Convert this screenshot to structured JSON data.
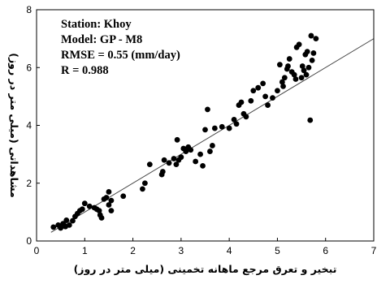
{
  "chart_data": {
    "type": "scatter",
    "title": "",
    "xlabel": "تبخیر و تعرق مرجع ماهانه تخمینی (میلی متر در روز)",
    "ylabel": "مشاهداتی (میلی متر در روز)",
    "xlim": [
      0,
      7
    ],
    "ylim": [
      0,
      8
    ],
    "xticks": [
      "0",
      "1",
      "2",
      "3",
      "4",
      "5",
      "6",
      "7"
    ],
    "yticks": [
      "0",
      "2",
      "4",
      "6",
      "8"
    ],
    "grid": false,
    "annotations": [
      "Station: Khoy",
      "Model: GP - M8",
      "RMSE = 0.55 (mm/day)",
      "R = 0.988"
    ],
    "reference_line": {
      "type": "1:1",
      "x": [
        0.3,
        7.0
      ],
      "y": [
        0.3,
        7.0
      ]
    },
    "points": [
      [
        0.35,
        0.48
      ],
      [
        0.45,
        0.55
      ],
      [
        0.5,
        0.45
      ],
      [
        0.55,
        0.6
      ],
      [
        0.6,
        0.5
      ],
      [
        0.62,
        0.72
      ],
      [
        0.68,
        0.55
      ],
      [
        0.75,
        0.7
      ],
      [
        0.8,
        0.85
      ],
      [
        0.85,
        0.95
      ],
      [
        0.9,
        1.05
      ],
      [
        0.95,
        1.1
      ],
      [
        1.0,
        1.3
      ],
      [
        1.1,
        1.2
      ],
      [
        1.2,
        1.15
      ],
      [
        1.25,
        1.1
      ],
      [
        1.3,
        1.05
      ],
      [
        1.32,
        0.9
      ],
      [
        1.35,
        0.8
      ],
      [
        1.4,
        1.45
      ],
      [
        1.45,
        1.5
      ],
      [
        1.5,
        1.25
      ],
      [
        1.55,
        1.4
      ],
      [
        1.55,
        1.05
      ],
      [
        1.5,
        1.7
      ],
      [
        1.8,
        1.55
      ],
      [
        2.2,
        1.8
      ],
      [
        2.25,
        2.0
      ],
      [
        2.35,
        2.65
      ],
      [
        2.6,
        2.3
      ],
      [
        2.62,
        2.4
      ],
      [
        2.65,
        2.8
      ],
      [
        2.75,
        2.7
      ],
      [
        2.85,
        2.85
      ],
      [
        2.9,
        2.65
      ],
      [
        2.92,
        3.5
      ],
      [
        2.95,
        2.8
      ],
      [
        3.0,
        2.9
      ],
      [
        3.05,
        3.2
      ],
      [
        3.1,
        3.1
      ],
      [
        3.15,
        3.25
      ],
      [
        3.2,
        3.15
      ],
      [
        3.3,
        2.75
      ],
      [
        3.4,
        3.0
      ],
      [
        3.45,
        2.6
      ],
      [
        3.5,
        3.85
      ],
      [
        3.55,
        4.55
      ],
      [
        3.6,
        3.1
      ],
      [
        3.65,
        3.3
      ],
      [
        3.7,
        3.9
      ],
      [
        3.85,
        3.95
      ],
      [
        4.0,
        3.9
      ],
      [
        4.1,
        4.2
      ],
      [
        4.15,
        4.05
      ],
      [
        4.2,
        4.7
      ],
      [
        4.25,
        4.8
      ],
      [
        4.3,
        4.4
      ],
      [
        4.35,
        4.3
      ],
      [
        4.45,
        4.85
      ],
      [
        4.5,
        5.2
      ],
      [
        4.6,
        5.3
      ],
      [
        4.7,
        5.45
      ],
      [
        4.75,
        5.0
      ],
      [
        4.8,
        4.7
      ],
      [
        4.9,
        4.95
      ],
      [
        5.0,
        5.2
      ],
      [
        5.05,
        6.1
      ],
      [
        5.1,
        5.5
      ],
      [
        5.12,
        5.35
      ],
      [
        5.15,
        5.65
      ],
      [
        5.2,
        5.95
      ],
      [
        5.22,
        6.05
      ],
      [
        5.25,
        6.3
      ],
      [
        5.3,
        5.85
      ],
      [
        5.35,
        5.75
      ],
      [
        5.38,
        5.6
      ],
      [
        5.4,
        6.7
      ],
      [
        5.45,
        6.8
      ],
      [
        5.5,
        5.65
      ],
      [
        5.52,
        6.05
      ],
      [
        5.55,
        5.9
      ],
      [
        5.58,
        6.45
      ],
      [
        5.6,
        5.75
      ],
      [
        5.62,
        6.55
      ],
      [
        5.65,
        6.0
      ],
      [
        5.7,
        7.1
      ],
      [
        5.72,
        6.25
      ],
      [
        5.75,
        6.5
      ],
      [
        5.8,
        7.0
      ],
      [
        5.68,
        4.18
      ]
    ]
  }
}
